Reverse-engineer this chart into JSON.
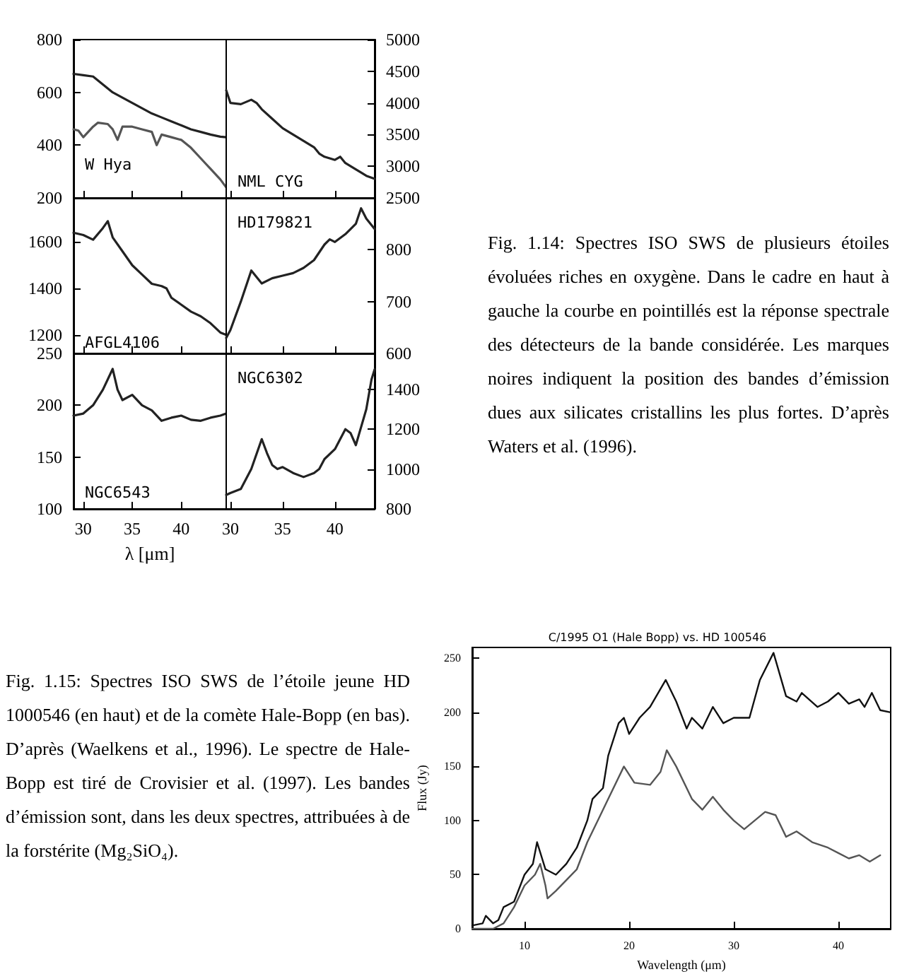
{
  "chart_data": [
    {
      "type": "line",
      "xlim": [
        29,
        44.6
      ],
      "xticks": [
        30,
        35,
        40
      ],
      "ylim": [
        200,
        800
      ],
      "yticks": [
        200,
        400,
        600,
        800
      ],
      "tick_labels": "y",
      "annotations": [
        "Fig. 1.14: Spectres ISO SWS de plusieurs étoiles évoluées riches en oxygène. Dans le cadre en haut à gauche la courbe en pointillés est la réponse spectrale des détecteurs de la bande considérée. Les marques noires indiquent la position des bandes d’émission dues aux silicates cristallins les plus fortes. D’après Waters et al. (1996)."
      ],
      "series": [
        {
          "name": "W Hya",
          "color": "#222222",
          "x": [
            29,
            30,
            31,
            32,
            33,
            34,
            35,
            36,
            37,
            38,
            39,
            40,
            41,
            42,
            43,
            44,
            44.6
          ],
          "values": [
            670,
            665,
            660,
            630,
            600,
            580,
            560,
            540,
            520,
            505,
            490,
            475,
            460,
            450,
            440,
            432,
            430
          ]
        },
        {
          "color": "#555555",
          "x": [
            29,
            29.5,
            30,
            31,
            31.5,
            32.5,
            33,
            33.5,
            34,
            35,
            36,
            37,
            37.5,
            38,
            39,
            40,
            41,
            42,
            42.5,
            43,
            44,
            44.6
          ],
          "values": [
            460,
            455,
            430,
            470,
            485,
            480,
            460,
            420,
            470,
            470,
            460,
            450,
            400,
            440,
            430,
            420,
            390,
            350,
            330,
            310,
            270,
            240
          ]
        }
      ]
    },
    {
      "type": "line",
      "xlim": [
        29.6,
        43.8
      ],
      "xticks": [
        30,
        35,
        40
      ],
      "ylim": [
        2500,
        5000
      ],
      "yticks": [
        2500,
        3000,
        3500,
        4000,
        4500,
        5000
      ],
      "tick_labels": "y",
      "series": [
        {
          "name": "NML CYG",
          "color": "#222222",
          "x": [
            29.6,
            30,
            31,
            32,
            32.5,
            33,
            34,
            35,
            36,
            37,
            38,
            38.5,
            39,
            40,
            40.5,
            41,
            42,
            43,
            43.8
          ],
          "values": [
            4200,
            4000,
            3980,
            4050,
            4000,
            3900,
            3750,
            3600,
            3500,
            3400,
            3300,
            3200,
            3150,
            3100,
            3150,
            3050,
            2950,
            2850,
            2800
          ]
        }
      ]
    },
    {
      "type": "line",
      "xlim": [
        29,
        44.6
      ],
      "xticks": [
        30,
        35,
        40
      ],
      "ylim": [
        1120,
        1790
      ],
      "yticks": [
        1200,
        1400,
        1600
      ],
      "tick_labels": "y",
      "series": [
        {
          "name": "AFGL4106",
          "color": "#222222",
          "x": [
            29,
            30,
            31,
            32,
            32.5,
            33,
            34,
            35,
            36,
            37,
            38,
            38.5,
            39,
            40,
            41,
            42,
            43,
            44,
            44.6
          ],
          "values": [
            1640,
            1630,
            1610,
            1660,
            1690,
            1620,
            1560,
            1500,
            1460,
            1420,
            1410,
            1400,
            1360,
            1330,
            1300,
            1280,
            1250,
            1210,
            1200
          ]
        }
      ]
    },
    {
      "type": "line",
      "xlim": [
        29.6,
        43.8
      ],
      "xticks": [
        30,
        35,
        40
      ],
      "ylim": [
        600,
        900
      ],
      "yticks": [
        600,
        700,
        800
      ],
      "tick_labels": "y",
      "series": [
        {
          "name": "HD179821",
          "color": "#222222",
          "x": [
            29.6,
            30,
            31,
            32,
            33,
            34,
            35,
            36,
            37,
            38,
            38.5,
            39,
            39.5,
            40,
            41,
            42,
            42.5,
            43,
            43.8
          ],
          "values": [
            630,
            645,
            700,
            760,
            735,
            745,
            750,
            755,
            765,
            780,
            795,
            810,
            820,
            815,
            830,
            850,
            880,
            860,
            840
          ]
        }
      ]
    },
    {
      "type": "line",
      "xlim": [
        29,
        44.6
      ],
      "xticks": [
        30,
        35,
        40
      ],
      "ylim": [
        100,
        250
      ],
      "yticks": [
        100,
        150,
        200,
        250
      ],
      "xlabel": "λ [μm]",
      "series": [
        {
          "name": "NGC6543",
          "color": "#222222",
          "x": [
            29,
            30,
            31,
            32,
            33,
            33.5,
            34,
            35,
            36,
            37,
            38,
            39,
            40,
            41,
            42,
            43,
            44,
            44.6
          ],
          "values": [
            190,
            192,
            200,
            215,
            235,
            215,
            205,
            210,
            200,
            195,
            185,
            188,
            190,
            186,
            185,
            188,
            190,
            192
          ]
        }
      ]
    },
    {
      "type": "line",
      "xlim": [
        29.6,
        43.8
      ],
      "xticks": [
        30,
        35,
        40
      ],
      "ylim": [
        800,
        1580
      ],
      "yticks": [
        800,
        1000,
        1200,
        1400
      ],
      "series": [
        {
          "name": "NGC6302",
          "color": "#222222",
          "x": [
            29.6,
            30,
            31,
            32,
            33,
            33.5,
            34,
            34.5,
            35,
            36,
            37,
            38,
            38.5,
            39,
            40,
            41,
            41.5,
            42,
            43,
            43.5,
            43.8
          ],
          "values": [
            870,
            880,
            900,
            1000,
            1150,
            1080,
            1020,
            1000,
            1010,
            980,
            960,
            980,
            1000,
            1050,
            1100,
            1200,
            1180,
            1120,
            1300,
            1450,
            1500
          ]
        }
      ]
    },
    {
      "type": "line",
      "title": "C/1995 O1 (Hale Bopp) vs. HD 100546",
      "xlabel": "Wavelength (μm)",
      "ylabel": "Flux (Jy)",
      "xlim": [
        5,
        45
      ],
      "xticks": [
        10,
        20,
        30,
        40
      ],
      "ylim": [
        0,
        260
      ],
      "yticks": [
        0,
        50,
        100,
        150,
        200,
        250
      ],
      "annotations": [
        "Fig. 1.15: Spectres ISO SWS de l’étoile jeune HD 1000546 (en haut) et de la comète Hale-Bopp (en bas). D’après (Waelkens et al., 1996). Le spectre de Hale-Bopp est tiré de Crovisier et al. (1997). Les bandes d’émission sont, dans les deux spectres, attribuées à de la forstérite (Mg₂SiO₄)."
      ],
      "series": [
        {
          "color": "#111111",
          "x": [
            5,
            6,
            6.3,
            7,
            7.5,
            8,
            9,
            10,
            10.8,
            11.2,
            12,
            13,
            14,
            15,
            16,
            16.5,
            17.5,
            18,
            19,
            19.5,
            20,
            21,
            22,
            23.5,
            24.5,
            25.5,
            26,
            27,
            28,
            29,
            30,
            31.5,
            32.5,
            33.8,
            35,
            36,
            36.5,
            38,
            39,
            40,
            41,
            42,
            42.5,
            43.2,
            44,
            45
          ],
          "values": [
            3,
            5,
            12,
            5,
            8,
            20,
            25,
            50,
            60,
            80,
            55,
            50,
            60,
            75,
            100,
            120,
            130,
            160,
            190,
            195,
            180,
            195,
            205,
            230,
            210,
            185,
            195,
            185,
            205,
            190,
            195,
            195,
            230,
            255,
            215,
            210,
            218,
            205,
            210,
            218,
            208,
            212,
            205,
            218,
            202,
            200
          ]
        },
        {
          "color": "#555555",
          "x": [
            5,
            7,
            8,
            9,
            10,
            11,
            11.5,
            12,
            12.2,
            13,
            14,
            15,
            16,
            17,
            18,
            19.5,
            20.5,
            22,
            23,
            23.6,
            24.5,
            26,
            27,
            28,
            29,
            30,
            31,
            32,
            33,
            34,
            35,
            36,
            37.5,
            39,
            40,
            41,
            42,
            43,
            44
          ],
          "values": [
            0,
            0,
            5,
            20,
            40,
            50,
            60,
            40,
            28,
            35,
            45,
            55,
            80,
            100,
            120,
            150,
            135,
            133,
            145,
            165,
            150,
            120,
            110,
            122,
            110,
            100,
            92,
            100,
            108,
            105,
            85,
            90,
            80,
            75,
            70,
            65,
            68,
            62,
            68
          ]
        }
      ]
    }
  ]
}
